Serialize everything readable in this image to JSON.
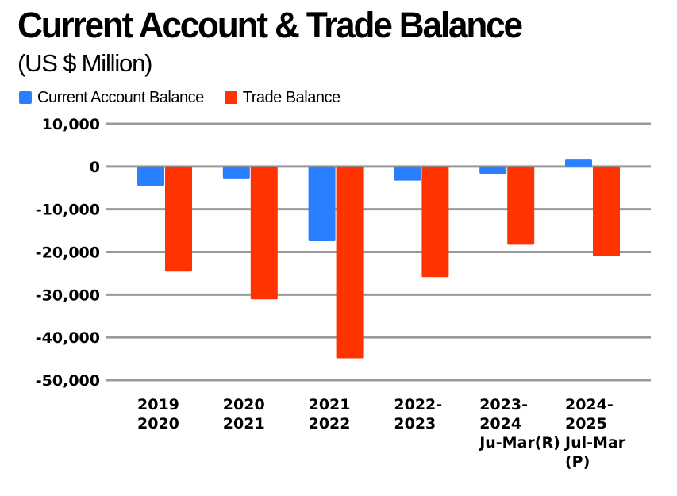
{
  "chart_data": {
    "type": "bar",
    "title": "Current Account & Trade Balance",
    "subtitle": "(US $ Million)",
    "xlabel": "",
    "ylabel": "",
    "ylim": [
      -50000,
      10000
    ],
    "yticks": [
      10000,
      0,
      -10000,
      -20000,
      -30000,
      -40000,
      -50000
    ],
    "ytick_labels": [
      "10,000",
      "0",
      "-10,000",
      "-20,000",
      "-30,000",
      "-40,000",
      "-50,000"
    ],
    "grid": true,
    "legend_position": "top-left",
    "categories": [
      [
        "2019",
        "2020"
      ],
      [
        "2020",
        "2021"
      ],
      [
        "2021",
        "2022"
      ],
      [
        "2022-",
        "2023"
      ],
      [
        "2023-",
        "2024",
        "Ju-Mar(R)"
      ],
      [
        "2024-",
        "2025",
        "Jul-Mar",
        "(P)"
      ]
    ],
    "series": [
      {
        "name": "Current Account Balance",
        "color": "#2a7fff",
        "values": [
          -4500,
          -2800,
          -17500,
          -3300,
          -1700,
          1800
        ]
      },
      {
        "name": "Trade Balance",
        "color": "#ff3300",
        "values": [
          -24600,
          -31100,
          -44900,
          -25900,
          -18300,
          -21000
        ]
      }
    ],
    "gridline_color": "#999999"
  }
}
